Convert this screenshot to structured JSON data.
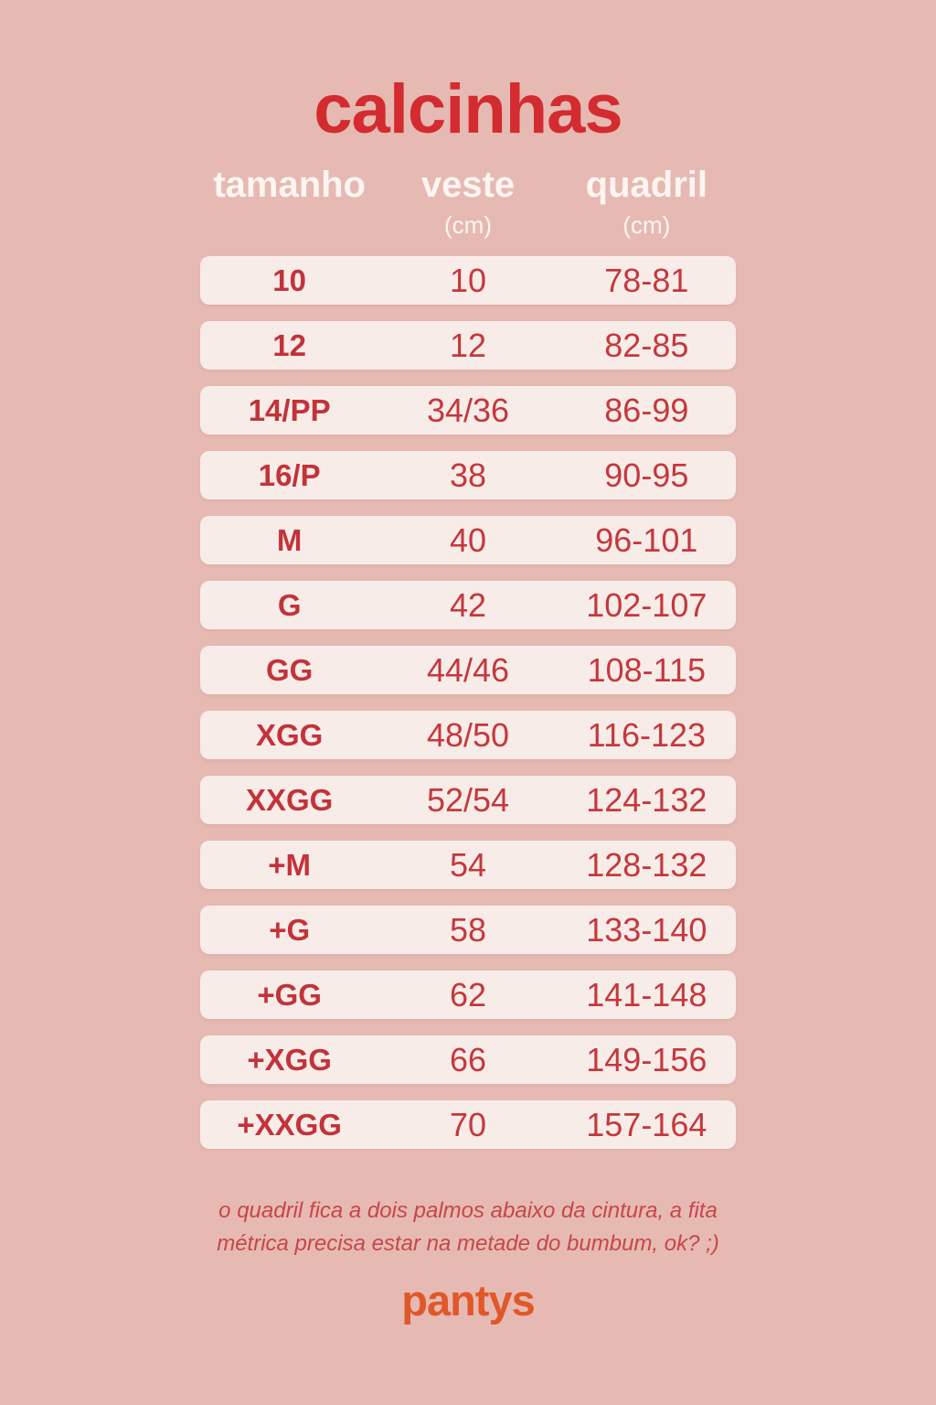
{
  "chart_data": {
    "type": "table",
    "title": "calcinhas",
    "columns": [
      {
        "label": "tamanho",
        "unit": ""
      },
      {
        "label": "veste",
        "unit": "(cm)"
      },
      {
        "label": "quadril",
        "unit": "(cm)"
      }
    ],
    "rows": [
      [
        "10",
        "10",
        "78-81"
      ],
      [
        "12",
        "12",
        "82-85"
      ],
      [
        "14/PP",
        "34/36",
        "86-99"
      ],
      [
        "16/P",
        "38",
        "90-95"
      ],
      [
        "M",
        "40",
        "96-101"
      ],
      [
        "G",
        "42",
        "102-107"
      ],
      [
        "GG",
        "44/46",
        "108-115"
      ],
      [
        "XGG",
        "48/50",
        "116-123"
      ],
      [
        "XXGG",
        "52/54",
        "124-132"
      ],
      [
        "+M",
        "54",
        "128-132"
      ],
      [
        "+G",
        "58",
        "133-140"
      ],
      [
        "+GG",
        "62",
        "141-148"
      ],
      [
        "+XGG",
        "66",
        "149-156"
      ],
      [
        "+XXGG",
        "70",
        "157-164"
      ]
    ]
  },
  "page": {
    "note_line1": "o quadril fica a dois palmos abaixo da cintura, a fita",
    "note_line2": "métrica precisa estar na metade do bumbum, ok? ;)",
    "brand": "pantys"
  },
  "colors": {
    "background": "#e6bab2",
    "row_background": "#f8ece8",
    "table_red": "#c4383d",
    "title_red": "#d32b2f",
    "header_white": "#fcf5f2",
    "brand_orange": "#e0582a"
  }
}
